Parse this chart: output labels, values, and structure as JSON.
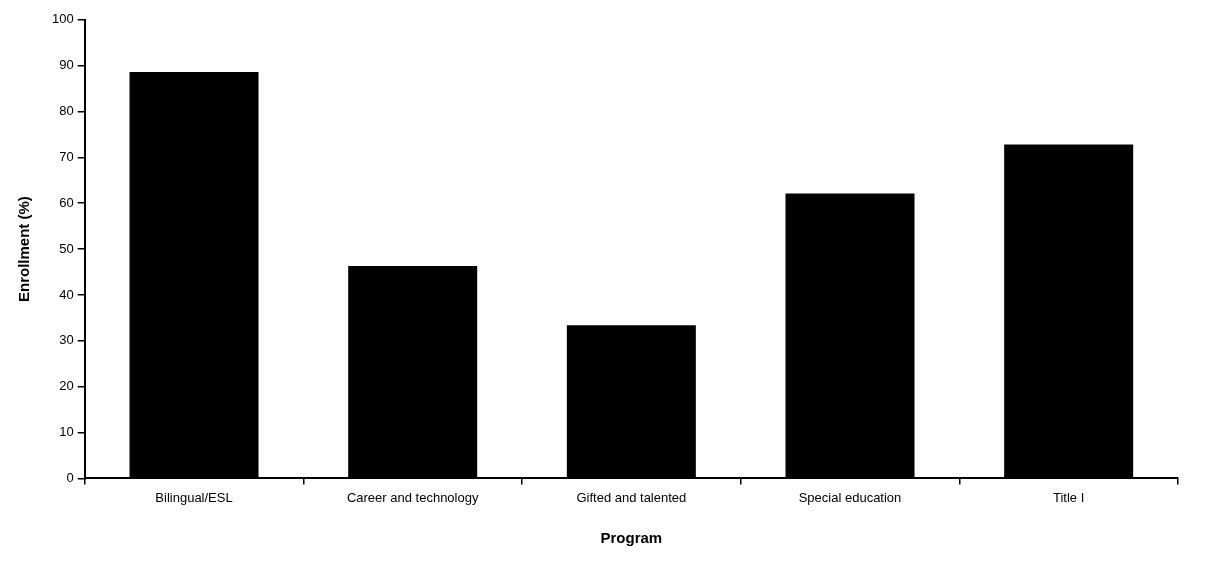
{
  "chart_data": {
    "type": "bar",
    "xlabel": "Program",
    "ylabel": "Enrollment (%)",
    "categories": [
      "Bilingual/ESL",
      "Career and technology",
      "Gifted and talented",
      "Special education",
      "Title I"
    ],
    "values": [
      88.6,
      46.3,
      33.4,
      62.1,
      72.8
    ],
    "color": "#000000",
    "ylim": [
      0,
      100
    ],
    "yticks": [
      0,
      10,
      20,
      30,
      40,
      50,
      60,
      70,
      80,
      90,
      100
    ],
    "grid": false,
    "legend": false
  }
}
